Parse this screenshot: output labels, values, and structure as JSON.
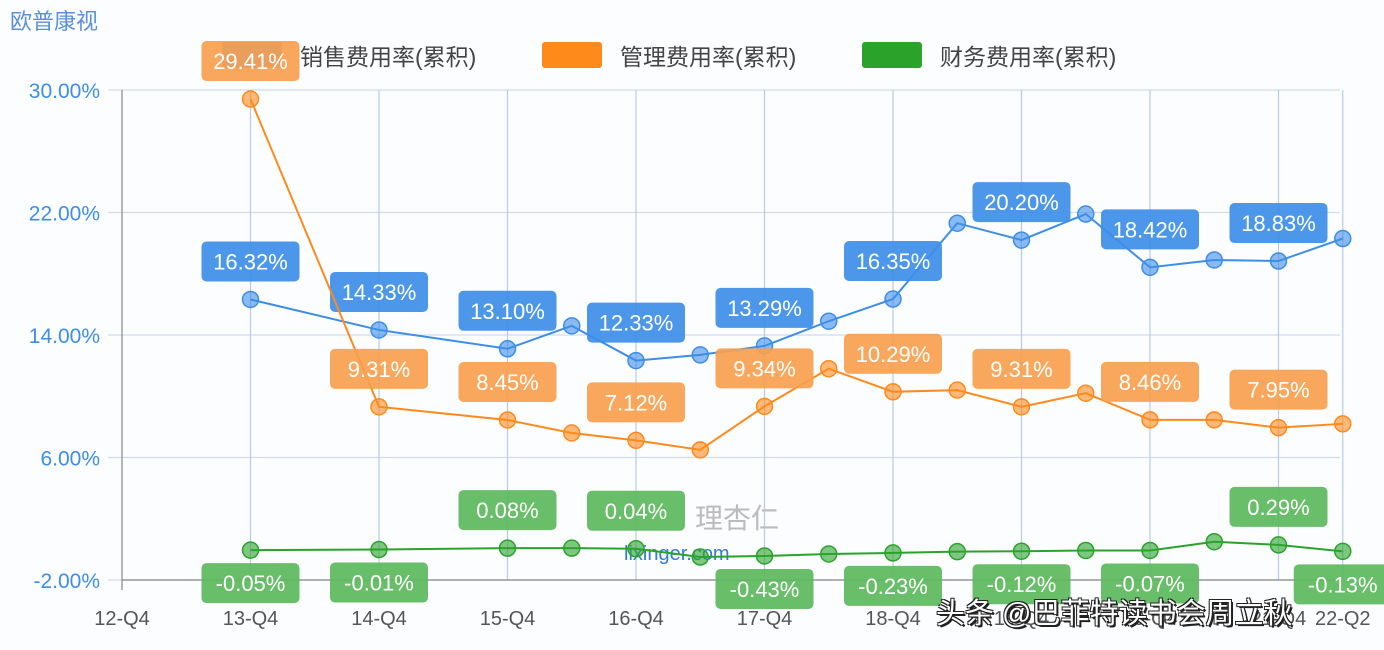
{
  "header": {
    "title": "欧普康视"
  },
  "legend": [
    {
      "label": "销售费用率(累积)",
      "color": "#3d8ee8"
    },
    {
      "label": "管理费用率(累积)",
      "color": "#ff8a1c"
    },
    {
      "label": "财务费用率(累积)",
      "color": "#2ba32b"
    }
  ],
  "watermark": {
    "text": "头条 @巴菲特读书会周立秋",
    "logo_text": "理杏仁",
    "logo_url_text": "lixinger.com"
  },
  "chart_data": {
    "type": "line",
    "title": "欧普康视",
    "xlabel": "",
    "ylabel": "",
    "ylim": [
      -2,
      30
    ],
    "yticks": [
      "-2.00%",
      "6.00%",
      "14.00%",
      "22.00%",
      "30.00%"
    ],
    "xticks": [
      "12-Q4",
      "13-Q4",
      "14-Q4",
      "15-Q4",
      "16-Q4",
      "17-Q4",
      "18-Q4",
      "19-Q4",
      "20-Q4",
      "21-Q4",
      "22-Q2"
    ],
    "grid": true,
    "legend_position": "top",
    "x": [
      "13-Q4",
      "14-Q4",
      "15-Q4",
      "16-Q2",
      "16-Q4",
      "17-Q2",
      "17-Q4",
      "18-Q2",
      "18-Q4",
      "19-Q2",
      "19-Q4",
      "20-Q2",
      "20-Q4",
      "21-Q2",
      "21-Q4",
      "22-Q2"
    ],
    "series": [
      {
        "name": "销售费用率(累积)",
        "color": "#3d8ee8",
        "values": [
          16.32,
          14.33,
          13.1,
          14.6,
          12.33,
          12.7,
          13.29,
          14.9,
          16.35,
          21.3,
          20.2,
          21.9,
          18.42,
          18.9,
          18.83,
          20.3
        ],
        "labels": {
          "13-Q4": "16.32%",
          "14-Q4": "14.33%",
          "15-Q4": "13.10%",
          "16-Q4": "12.33%",
          "17-Q4": "13.29%",
          "18-Q4": "16.35%",
          "19-Q4": "20.20%",
          "20-Q4": "18.42%",
          "21-Q4": "18.83%"
        }
      },
      {
        "name": "管理费用率(累积)",
        "color": "#ff8a1c",
        "values": [
          29.41,
          9.31,
          8.45,
          7.6,
          7.12,
          6.5,
          9.34,
          11.8,
          10.29,
          10.4,
          9.31,
          10.2,
          8.46,
          8.46,
          7.95,
          8.2
        ],
        "labels": {
          "13-Q4": "29.41%",
          "14-Q4": "9.31%",
          "15-Q4": "8.45%",
          "16-Q4": "7.12%",
          "17-Q4": "9.34%",
          "18-Q4": "10.29%",
          "19-Q4": "9.31%",
          "20-Q4": "8.46%",
          "21-Q4": "7.95%"
        }
      },
      {
        "name": "财务费用率(累积)",
        "color": "#2ba32b",
        "values": [
          -0.05,
          -0.01,
          0.08,
          0.08,
          0.04,
          -0.5,
          -0.43,
          -0.3,
          -0.23,
          -0.15,
          -0.12,
          -0.07,
          -0.07,
          0.5,
          0.29,
          -0.13
        ],
        "labels": {
          "13-Q4": "-0.05%",
          "14-Q4": "-0.01%",
          "15-Q4": "0.08%",
          "16-Q4": "0.04%",
          "17-Q4": "-0.43%",
          "18-Q4": "-0.23%",
          "19-Q4": "-0.12%",
          "20-Q4": "-0.07%",
          "21-Q4": "0.29%",
          "22-Q2": "-0.13%"
        }
      }
    ]
  }
}
